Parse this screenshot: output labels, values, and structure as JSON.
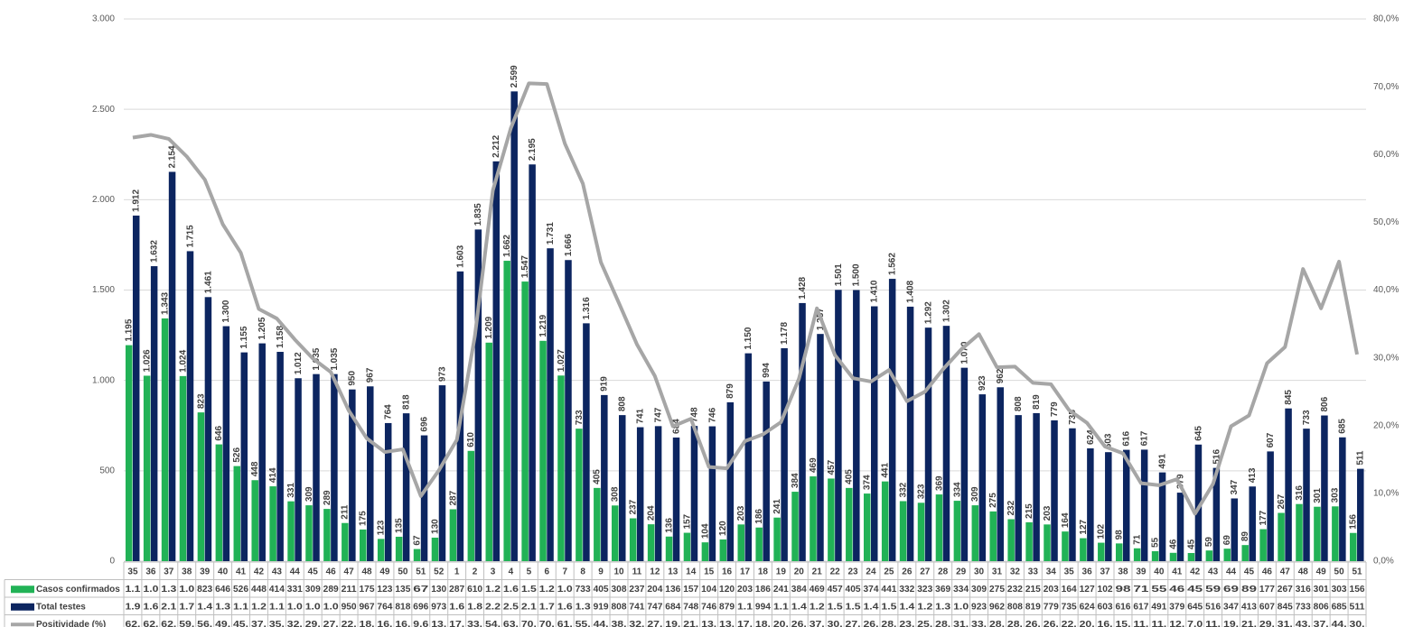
{
  "chart_data": {
    "type": "bar",
    "categories": [
      "35",
      "36",
      "37",
      "38",
      "39",
      "40",
      "41",
      "42",
      "43",
      "44",
      "45",
      "46",
      "47",
      "48",
      "49",
      "50",
      "51",
      "52",
      "1",
      "2",
      "3",
      "4",
      "5",
      "6",
      "7",
      "8",
      "9",
      "10",
      "11",
      "12",
      "13",
      "14",
      "15",
      "16",
      "17",
      "18",
      "19",
      "20",
      "21",
      "22",
      "23",
      "24",
      "25",
      "26",
      "27",
      "28",
      "29",
      "30",
      "31",
      "32",
      "33",
      "34",
      "35",
      "36",
      "37",
      "38",
      "39",
      "40",
      "41",
      "42",
      "43",
      "44",
      "45",
      "46",
      "47",
      "48",
      "49",
      "50",
      "51"
    ],
    "series": [
      {
        "name": "Casos confirmados",
        "color": "#21b256",
        "values": [
          1195,
          1026,
          1343,
          1024,
          823,
          646,
          526,
          448,
          414,
          331,
          309,
          289,
          211,
          175,
          123,
          135,
          67,
          130,
          287,
          610,
          1209,
          1662,
          1547,
          1219,
          1027,
          733,
          405,
          308,
          237,
          204,
          136,
          157,
          104,
          120,
          203,
          186,
          241,
          384,
          469,
          457,
          405,
          374,
          441,
          332,
          323,
          369,
          334,
          309,
          275,
          232,
          215,
          203,
          164,
          127,
          102,
          98,
          71,
          55,
          46,
          45,
          59,
          69,
          89,
          177,
          267,
          316,
          301,
          303,
          156
        ],
        "value_labels": [
          "1.195",
          "1.026",
          "1.343",
          "1.024",
          "823",
          "646",
          "526",
          "448",
          "414",
          "331",
          "309",
          "289",
          "211",
          "175",
          "123",
          "135",
          "67",
          "130",
          "287",
          "610",
          "1.209",
          "1.662",
          "1.547",
          "1.219",
          "1.027",
          "733",
          "405",
          "308",
          "237",
          "204",
          "136",
          "157",
          "104",
          "120",
          "203",
          "186",
          "241",
          "384",
          "469",
          "457",
          "405",
          "374",
          "441",
          "332",
          "323",
          "369",
          "334",
          "309",
          "275",
          "232",
          "215",
          "203",
          "164",
          "127",
          "102",
          "98",
          "71",
          "55",
          "46",
          "45",
          "59",
          "69",
          "89",
          "177",
          "267",
          "316",
          "301",
          "303",
          "156"
        ],
        "table_labels": [
          "1.1",
          "1.0",
          "1.3",
          "1.0",
          "823",
          "646",
          "526",
          "448",
          "414",
          "331",
          "309",
          "289",
          "211",
          "175",
          "123",
          "135",
          "67",
          "130",
          "287",
          "610",
          "1.2",
          "1.6",
          "1.5",
          "1.2",
          "1.0",
          "733",
          "405",
          "308",
          "237",
          "204",
          "136",
          "157",
          "104",
          "120",
          "203",
          "186",
          "241",
          "384",
          "469",
          "457",
          "405",
          "374",
          "441",
          "332",
          "323",
          "369",
          "334",
          "309",
          "275",
          "232",
          "215",
          "203",
          "164",
          "127",
          "102",
          "98",
          "71",
          "55",
          "46",
          "45",
          "59",
          "69",
          "89",
          "177",
          "267",
          "316",
          "301",
          "303",
          "156"
        ]
      },
      {
        "name": "Total testes",
        "color": "#0c2560",
        "values": [
          1912,
          1632,
          2154,
          1715,
          1461,
          1300,
          1155,
          1205,
          1158,
          1012,
          1035,
          1035,
          950,
          967,
          764,
          818,
          696,
          973,
          1603,
          1835,
          2212,
          2599,
          2195,
          1731,
          1666,
          1316,
          919,
          808,
          741,
          747,
          684,
          748,
          746,
          879,
          1150,
          994,
          1178,
          1428,
          1257,
          1501,
          1500,
          1410,
          1562,
          1408,
          1292,
          1302,
          1070,
          923,
          962,
          808,
          819,
          779,
          735,
          624,
          603,
          616,
          617,
          491,
          379,
          645,
          516,
          347,
          413,
          607,
          845,
          733,
          806,
          685,
          511
        ],
        "value_labels": [
          "1.912",
          "1.632",
          "2.154",
          "1.715",
          "1.461",
          "1.300",
          "1.155",
          "1.205",
          "1.158",
          "1.012",
          "1.035",
          "1.035",
          "950",
          "967",
          "764",
          "818",
          "696",
          "973",
          "1.603",
          "1.835",
          "2.212",
          "2.599",
          "2.195",
          "1.731",
          "1.666",
          "1.316",
          "919",
          "808",
          "741",
          "747",
          "684",
          "748",
          "746",
          "879",
          "1.150",
          "994",
          "1.178",
          "1.428",
          "1.257",
          "1.501",
          "1.500",
          "1.410",
          "1.562",
          "1.408",
          "1.292",
          "1.302",
          "1.070",
          "923",
          "962",
          "808",
          "819",
          "779",
          "735",
          "624",
          "603",
          "616",
          "617",
          "491",
          "379",
          "645",
          "516",
          "347",
          "413",
          "607",
          "845",
          "733",
          "806",
          "685",
          "511"
        ],
        "table_labels": [
          "1.9",
          "1.6",
          "2.1",
          "1.7",
          "1.4",
          "1.3",
          "1.1",
          "1.2",
          "1.1",
          "1.0",
          "1.0",
          "1.0",
          "950",
          "967",
          "764",
          "818",
          "696",
          "973",
          "1.6",
          "1.8",
          "2.2",
          "2.5",
          "2.1",
          "1.7",
          "1.6",
          "1.3",
          "919",
          "808",
          "741",
          "747",
          "684",
          "748",
          "746",
          "879",
          "1.1",
          "994",
          "1.1",
          "1.4",
          "1.2",
          "1.5",
          "1.5",
          "1.4",
          "1.5",
          "1.4",
          "1.2",
          "1.3",
          "1.0",
          "923",
          "962",
          "808",
          "819",
          "779",
          "735",
          "624",
          "603",
          "616",
          "617",
          "491",
          "379",
          "645",
          "516",
          "347",
          "413",
          "607",
          "845",
          "733",
          "806",
          "685",
          "511"
        ]
      },
      {
        "name": "Positividade (%)",
        "type": "line",
        "axis": "y2",
        "color": "#a6a6a6",
        "values": [
          62.5,
          62.9,
          62.3,
          59.7,
          56.3,
          49.7,
          45.5,
          37.2,
          35.8,
          32.7,
          29.9,
          27.9,
          22.2,
          18.1,
          16.1,
          16.5,
          9.6,
          13.4,
          17.9,
          33.2,
          54.7,
          63.9,
          70.5,
          70.4,
          61.6,
          55.7,
          44.1,
          38.1,
          32.0,
          27.3,
          19.9,
          21.0,
          13.9,
          13.7,
          17.7,
          18.7,
          20.5,
          26.9,
          37.3,
          30.4,
          27.0,
          26.5,
          28.2,
          23.6,
          25.0,
          28.3,
          31.2,
          33.5,
          28.6,
          28.7,
          26.3,
          26.1,
          22.3,
          20.4,
          16.9,
          15.9,
          11.5,
          11.2,
          12.1,
          7.0,
          11.4,
          19.9,
          21.5,
          29.2,
          31.6,
          43.1,
          37.3,
          44.2,
          30.5
        ],
        "table_labels": [
          "62.",
          "62.",
          "62.",
          "59.",
          "56.",
          "49.",
          "45.",
          "37.",
          "35.",
          "32.",
          "29.",
          "27.",
          "22.",
          "18.",
          "16.",
          "16.",
          "9.6",
          "13.",
          "17.",
          "33.",
          "54.",
          "63.",
          "70.",
          "70.",
          "61.",
          "55.",
          "44.",
          "38.",
          "32.",
          "27.",
          "19.",
          "21.",
          "13.",
          "13.",
          "17.",
          "18.",
          "20.",
          "26.",
          "37.",
          "30.",
          "27.",
          "26.",
          "28.",
          "23.",
          "25.",
          "28.",
          "31.",
          "33.",
          "28.",
          "28.",
          "26.",
          "26.",
          "22.",
          "20.",
          "16.",
          "15.",
          "11.",
          "11.",
          "12.",
          "7.0",
          "11.",
          "19.",
          "21.",
          "29.",
          "31.",
          "43.",
          "37.",
          "44.",
          "30."
        ]
      }
    ],
    "ylim": [
      0,
      3000
    ],
    "yticks": [
      0,
      {
        "value": 500,
        "label": "500"
      },
      {
        "value": 1000,
        "label": "1.000"
      },
      {
        "value": 1500,
        "label": "1.500"
      },
      {
        "value": 2000,
        "label": "2.000"
      },
      {
        "value": 2500,
        "label": "2.500"
      },
      {
        "value": 3000,
        "label": "3.000"
      }
    ],
    "y2lim": [
      0,
      80
    ],
    "y2ticks": [
      {
        "value": 0,
        "label": "0,0%"
      },
      {
        "value": 10,
        "label": "10,0%"
      },
      {
        "value": 20,
        "label": "20,0%"
      },
      {
        "value": 30,
        "label": "30,0%"
      },
      {
        "value": 40,
        "label": "40,0%"
      },
      {
        "value": 50,
        "label": "50,0%"
      },
      {
        "value": 60,
        "label": "60,0%"
      },
      {
        "value": 70,
        "label": "70,0%"
      },
      {
        "value": 80,
        "label": "80,0%"
      }
    ],
    "grid": true
  }
}
